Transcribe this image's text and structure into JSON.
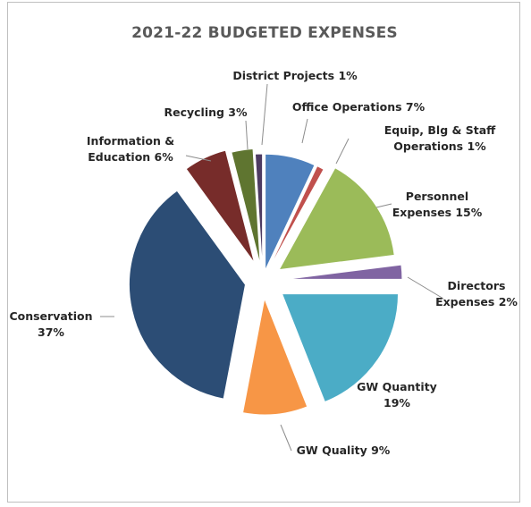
{
  "chart_data": {
    "type": "pie",
    "title": "2021-22 BUDGETED EXPENSES",
    "slices": [
      {
        "label": [
          "Office Operations 7%"
        ],
        "value": 7,
        "color": "#4f81bd"
      },
      {
        "label": [
          "Equip, Blg & Staff",
          "Operations 1%"
        ],
        "value": 1,
        "color": "#c0504d"
      },
      {
        "label": [
          "Personnel",
          "Expenses 15%"
        ],
        "value": 15,
        "color": "#9bbb59"
      },
      {
        "label": [
          "Directors",
          "Expenses 2%"
        ],
        "value": 2,
        "color": "#8064a2"
      },
      {
        "label": [
          "GW Quantity",
          "19%"
        ],
        "value": 19,
        "color": "#4bacc6"
      },
      {
        "label": [
          "GW Quality 9%"
        ],
        "value": 9,
        "color": "#f79646"
      },
      {
        "label": [
          "Conservation",
          "37%"
        ],
        "value": 37,
        "color": "#2c4d75"
      },
      {
        "label": [
          "Information &",
          "Education 6%"
        ],
        "value": 6,
        "color": "#772c2a"
      },
      {
        "label": [
          "Recycling 3%"
        ],
        "value": 3,
        "color": "#5f7530"
      },
      {
        "label": [
          "District Projects 1%"
        ],
        "value": 1,
        "color": "#4d3b62"
      }
    ],
    "legend": "none"
  }
}
